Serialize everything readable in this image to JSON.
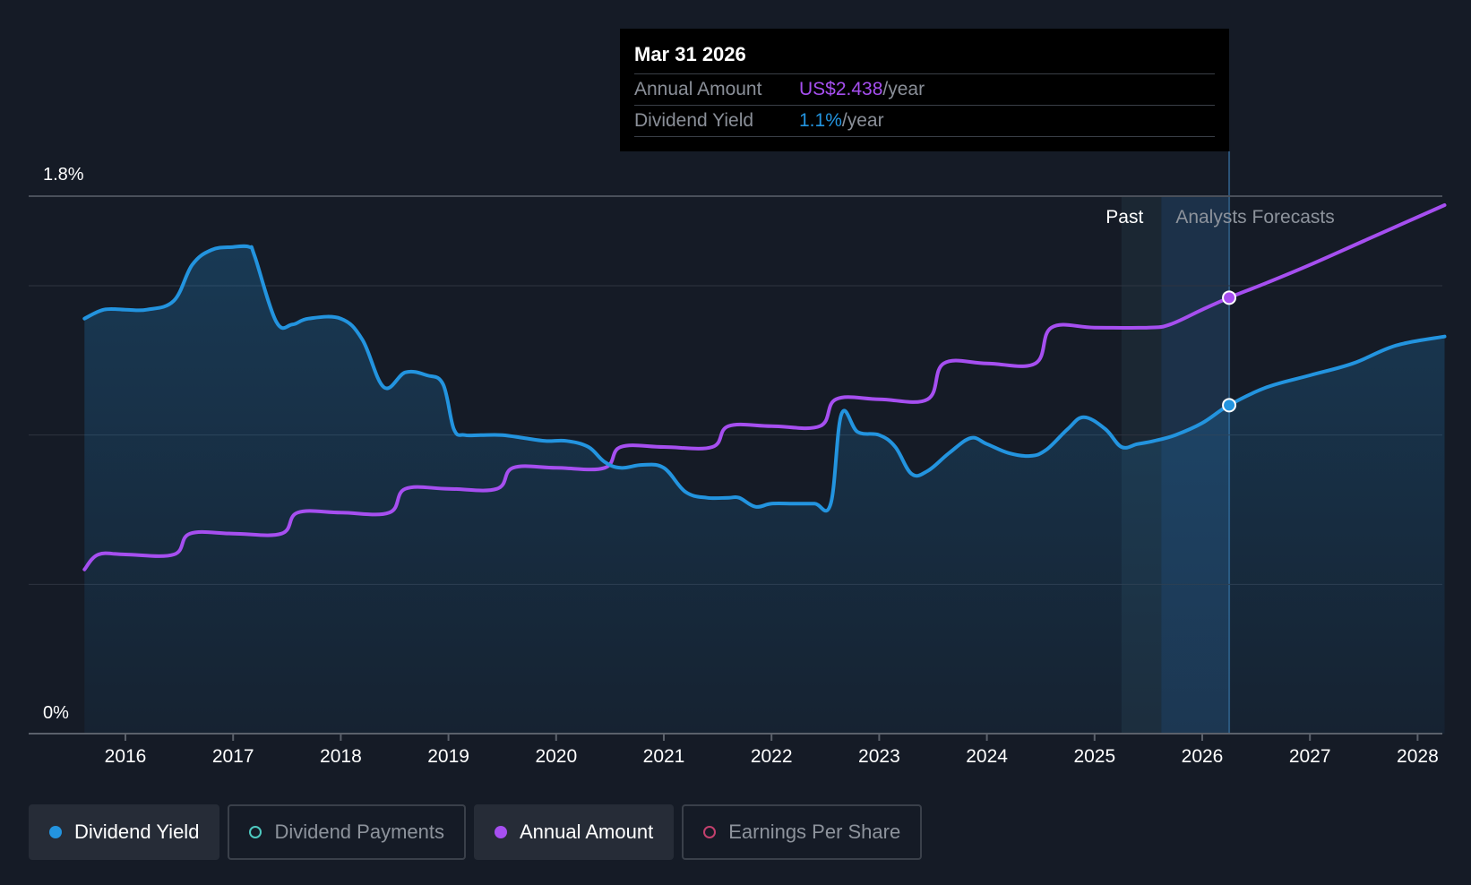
{
  "tooltip": {
    "date": "Mar 31 2026",
    "annual_label": "Annual Amount",
    "annual_value": "US$2.438",
    "annual_suffix": "/year",
    "yield_label": "Dividend Yield",
    "yield_value": "1.1%",
    "yield_suffix": "/year"
  },
  "legend": [
    {
      "label": "Dividend Yield",
      "color": "#2394df",
      "active": true
    },
    {
      "label": "Dividend Payments",
      "color": "#4ec9c0",
      "active": false
    },
    {
      "label": "Annual Amount",
      "color": "#a64ff0",
      "active": true
    },
    {
      "label": "Earnings Per Share",
      "color": "#c2406d",
      "active": false
    }
  ],
  "colors": {
    "yield": "#2394df",
    "annual": "#a64ff0",
    "grid": "#2e3440",
    "axis_text": "#ffffff"
  },
  "chart_data": {
    "type": "line",
    "y_tick_labels": [
      "1.8%",
      "0%"
    ],
    "ylim": [
      0,
      1.8
    ],
    "x_tick_labels": [
      "2016",
      "2017",
      "2018",
      "2019",
      "2020",
      "2021",
      "2022",
      "2023",
      "2024",
      "2025",
      "2026",
      "2027",
      "2028"
    ],
    "xlim": [
      2015.1,
      2028.25
    ],
    "past_label": "Past",
    "forecast_label": "Analysts Forecasts",
    "past_shade_range": [
      2025.25,
      2025.62
    ],
    "forecast_shade_range": [
      2025.62,
      2026.25
    ],
    "series": [
      {
        "name": "Dividend Yield",
        "unit": "%",
        "x": [
          2015.62,
          2015.8,
          2016.0,
          2016.2,
          2016.45,
          2016.62,
          2016.8,
          2017.0,
          2017.15,
          2017.2,
          2017.4,
          2017.55,
          2017.7,
          2018.0,
          2018.2,
          2018.4,
          2018.6,
          2018.8,
          2018.95,
          2019.05,
          2019.15,
          2019.3,
          2019.5,
          2019.7,
          2019.9,
          2020.1,
          2020.3,
          2020.45,
          2020.6,
          2020.8,
          2021.0,
          2021.2,
          2021.4,
          2021.6,
          2021.7,
          2021.85,
          2022.0,
          2022.2,
          2022.4,
          2022.55,
          2022.65,
          2022.8,
          2023.0,
          2023.15,
          2023.3,
          2023.45,
          2023.65,
          2023.85,
          2024.0,
          2024.2,
          2024.4,
          2024.55,
          2024.75,
          2024.9,
          2025.1,
          2025.25,
          2025.4,
          2025.55,
          2025.75,
          2026.0,
          2026.25,
          2026.6,
          2027.0,
          2027.4,
          2027.8,
          2028.25
        ],
        "y": [
          1.39,
          1.42,
          1.42,
          1.42,
          1.45,
          1.57,
          1.62,
          1.63,
          1.63,
          1.6,
          1.38,
          1.37,
          1.39,
          1.39,
          1.32,
          1.16,
          1.21,
          1.2,
          1.17,
          1.02,
          1.0,
          1.0,
          1.0,
          0.99,
          0.98,
          0.98,
          0.96,
          0.91,
          0.89,
          0.9,
          0.89,
          0.81,
          0.79,
          0.79,
          0.79,
          0.76,
          0.77,
          0.77,
          0.77,
          0.77,
          1.07,
          1.01,
          1.0,
          0.96,
          0.87,
          0.88,
          0.94,
          0.99,
          0.97,
          0.94,
          0.93,
          0.95,
          1.02,
          1.06,
          1.02,
          0.96,
          0.97,
          0.98,
          1.0,
          1.04,
          1.1,
          1.16,
          1.2,
          1.24,
          1.3,
          1.33
        ]
      },
      {
        "name": "Annual Amount",
        "x": [
          2015.62,
          2015.75,
          2016.0,
          2016.45,
          2016.6,
          2017.0,
          2017.45,
          2017.6,
          2018.0,
          2018.45,
          2018.6,
          2019.0,
          2019.45,
          2019.6,
          2020.0,
          2020.45,
          2020.6,
          2021.0,
          2021.45,
          2021.6,
          2022.0,
          2022.45,
          2022.6,
          2023.0,
          2023.45,
          2023.6,
          2024.0,
          2024.45,
          2024.6,
          2025.0,
          2025.5,
          2025.7,
          2026.0,
          2026.25,
          2026.6,
          2027.0,
          2027.5,
          2028.25
        ],
        "y_pct_axis": [
          0.55,
          0.6,
          0.6,
          0.6,
          0.67,
          0.67,
          0.67,
          0.74,
          0.74,
          0.74,
          0.82,
          0.82,
          0.82,
          0.89,
          0.89,
          0.89,
          0.96,
          0.96,
          0.96,
          1.03,
          1.03,
          1.03,
          1.12,
          1.12,
          1.12,
          1.24,
          1.24,
          1.24,
          1.36,
          1.36,
          1.36,
          1.37,
          1.42,
          1.46,
          1.51,
          1.57,
          1.65,
          1.77
        ]
      }
    ],
    "marker_x": 2026.25
  }
}
